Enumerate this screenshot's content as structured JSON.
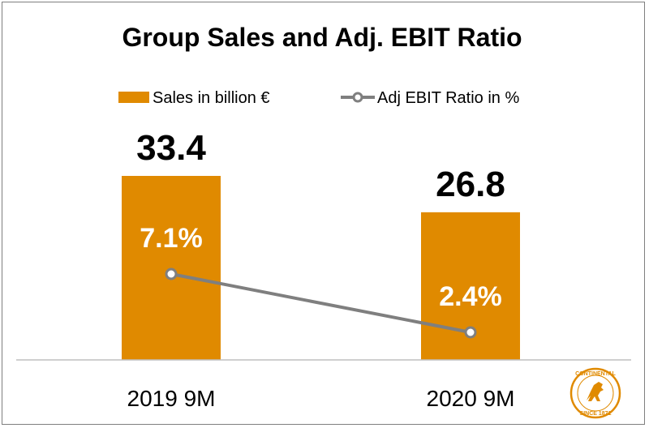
{
  "chart_data": {
    "type": "bar",
    "title": "Group Sales and Adj. EBIT Ratio",
    "categories": [
      "2019 9M",
      "2020 9M"
    ],
    "series": [
      {
        "name": "Sales in billion €",
        "type": "bar",
        "values": [
          33.4,
          26.8
        ],
        "labels": [
          "33.4",
          "26.8"
        ],
        "color": "#e08a00"
      },
      {
        "name": "Adj EBIT Ratio in %",
        "type": "line",
        "values": [
          7.1,
          2.4
        ],
        "labels": [
          "7.1%",
          "2.4%"
        ],
        "color": "#7f7f7f"
      }
    ],
    "legend_position": "top",
    "grid": false
  },
  "logo": {
    "name": "continental-logo",
    "text_top": "CONTINENTAL",
    "text_bottom": "SINCE 1871",
    "color": "#e08a00"
  }
}
